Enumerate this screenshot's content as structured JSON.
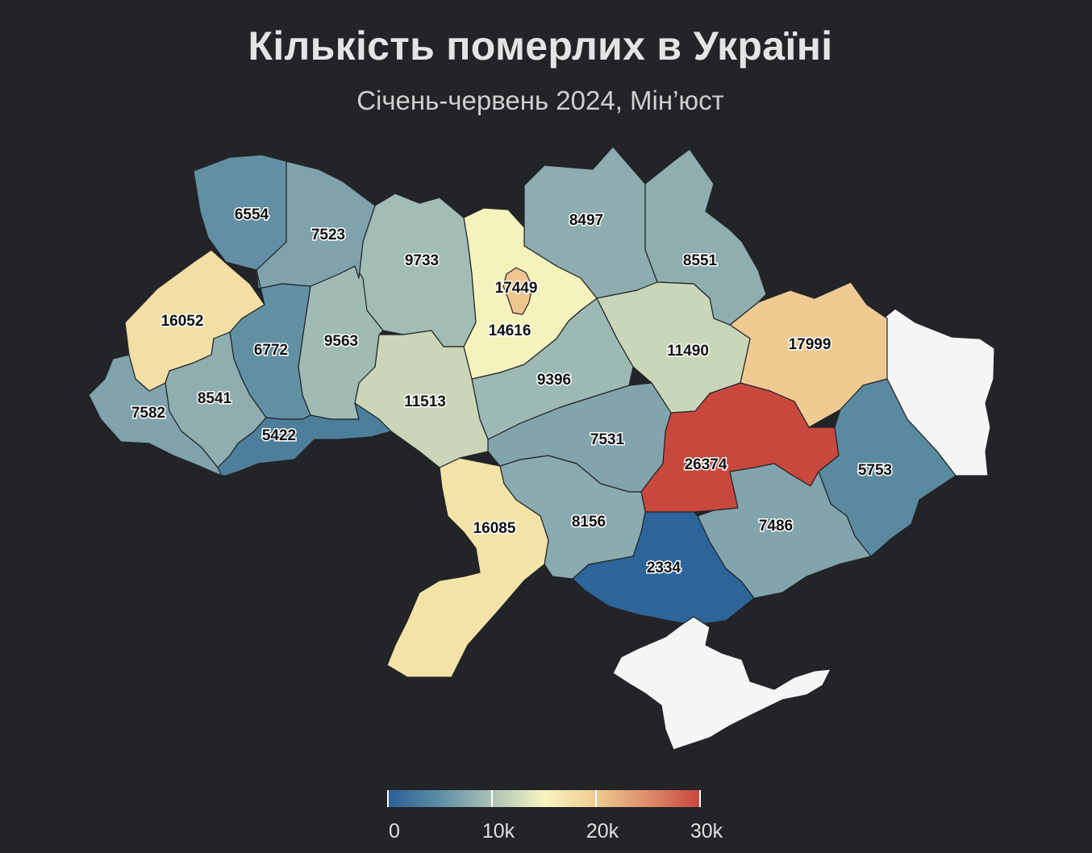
{
  "title": "Кількість померлих в Україні",
  "subtitle": "Січень-червень 2024, Мін’юст",
  "map_data": {
    "type": "choropleth",
    "regions": [
      {
        "id": "volyn",
        "value": 6554,
        "label": "6554",
        "color": "#628fa3"
      },
      {
        "id": "rivne",
        "value": 7523,
        "label": "7523",
        "color": "#7fa2ad"
      },
      {
        "id": "zhytomyr",
        "value": 9733,
        "label": "9733",
        "color": "#a1bdb5"
      },
      {
        "id": "kyiv-oblast",
        "value": 14616,
        "label": "14616",
        "color": "#f6f2bc"
      },
      {
        "id": "kyiv-city",
        "value": 17449,
        "label": "17449",
        "color": "#efc58f"
      },
      {
        "id": "chernihiv",
        "value": 8497,
        "label": "8497",
        "color": "#8dadb0"
      },
      {
        "id": "sumy",
        "value": 8551,
        "label": "8551",
        "color": "#8eaeb0"
      },
      {
        "id": "lviv",
        "value": 16052,
        "label": "16052",
        "color": "#f3dea3"
      },
      {
        "id": "ternopil",
        "value": 6772,
        "label": "6772",
        "color": "#6290a3"
      },
      {
        "id": "khmelnytskyi",
        "value": 9563,
        "label": "9563",
        "color": "#9fbbb4"
      },
      {
        "id": "zakarpattia",
        "value": 7582,
        "label": "7582",
        "color": "#80a3ad"
      },
      {
        "id": "ivano-frankivsk",
        "value": 8541,
        "label": "8541",
        "color": "#8eaeb0"
      },
      {
        "id": "chernivtsi",
        "value": 5422,
        "label": "5422",
        "color": "#4d7f9c"
      },
      {
        "id": "vinnytsia",
        "value": 11513,
        "label": "11513",
        "color": "#cbd6b8"
      },
      {
        "id": "cherkasy",
        "value": 9396,
        "label": "9396",
        "color": "#9cb9b3"
      },
      {
        "id": "poltava",
        "value": 11490,
        "label": "11490",
        "color": "#cad6b8"
      },
      {
        "id": "kharkiv",
        "value": 17999,
        "label": "17999",
        "color": "#efca93"
      },
      {
        "id": "luhansk",
        "value": null,
        "label": "",
        "color": "#f5f5f5"
      },
      {
        "id": "kirovohrad",
        "value": 7531,
        "label": "7531",
        "color": "#82a4ad"
      },
      {
        "id": "dnipropetrovsk",
        "value": 26374,
        "label": "26374",
        "color": "#c8483d"
      },
      {
        "id": "donetsk",
        "value": 5753,
        "label": "5753",
        "color": "#5a8aa0"
      },
      {
        "id": "odesa",
        "value": 16085,
        "label": "16085",
        "color": "#f3e3a7"
      },
      {
        "id": "mykolaiv",
        "value": 8156,
        "label": "8156",
        "color": "#8aabb0"
      },
      {
        "id": "zaporizhzhia",
        "value": 7486,
        "label": "7486",
        "color": "#82a4ad"
      },
      {
        "id": "kherson",
        "value": 2334,
        "label": "2334",
        "color": "#2d659a"
      },
      {
        "id": "crimea",
        "value": null,
        "label": "",
        "color": "#f5f5f5"
      }
    ]
  },
  "legend": {
    "min": 0,
    "max": 30000,
    "ticks": [
      {
        "value": 0,
        "label": "0"
      },
      {
        "value": 10000,
        "label": "10k"
      },
      {
        "value": 20000,
        "label": "20k"
      },
      {
        "value": 30000,
        "label": "30k"
      }
    ]
  }
}
